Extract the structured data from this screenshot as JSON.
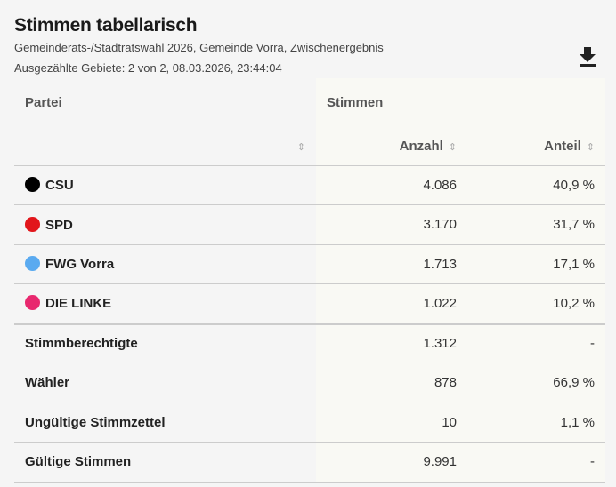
{
  "header": {
    "title": "Stimmen tabellarisch",
    "subtitle": "Gemeinderats-/Stadtratswahl 2026, Gemeinde Vorra, Zwischenergebnis",
    "status": "Ausgezählte Gebiete: 2 von 2, 08.03.2026, 23:44:04",
    "download_icon": "download-icon"
  },
  "table": {
    "col_partei": "Partei",
    "col_stimmen": "Stimmen",
    "col_anzahl": "Anzahl",
    "col_anteil": "Anteil",
    "sort_icon": "⇕",
    "parties": [
      {
        "name": "CSU",
        "color": "#000000",
        "anzahl": "4.086",
        "anteil": "40,9 %"
      },
      {
        "name": "SPD",
        "color": "#e2161b",
        "anzahl": "3.170",
        "anteil": "31,7 %"
      },
      {
        "name": "FWG Vorra",
        "color": "#5aaaf0",
        "anzahl": "1.713",
        "anteil": "17,1 %"
      },
      {
        "name": "DIE LINKE",
        "color": "#e8286e",
        "anzahl": "1.022",
        "anteil": "10,2 %"
      }
    ],
    "summary": [
      {
        "name": "Stimmberechtigte",
        "anzahl": "1.312",
        "anteil": "-"
      },
      {
        "name": "Wähler",
        "anzahl": "878",
        "anteil": "66,9 %"
      },
      {
        "name": "Ungültige Stimmzettel",
        "anzahl": "10",
        "anteil": "1,1 %"
      },
      {
        "name": "Gültige Stimmen",
        "anzahl": "9.991",
        "anteil": "-"
      }
    ]
  }
}
